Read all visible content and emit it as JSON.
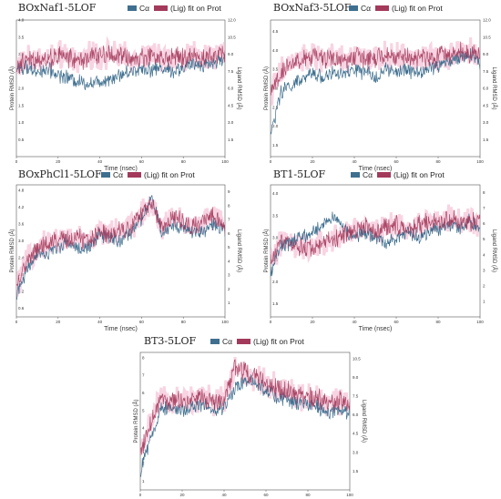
{
  "legend": {
    "ca_label": "Cα",
    "lig_label": "(Lig) fit on Prot",
    "ca_color": "#3f6f8f",
    "lig_color": "#a33a5b"
  },
  "x_axis_label": "Time (nsec)",
  "y_axis_left_label": "Protein RMSD (Å)",
  "y_axis_right_label": "Ligand RMSD (Å)",
  "chart_data": [
    {
      "type": "line",
      "title": "BOxNaf1-5LOF",
      "x_range": [
        0,
        100
      ],
      "x_ticks": [
        "0",
        "20",
        "40",
        "60",
        "80",
        "100"
      ],
      "y_left_ticks": [
        "0.5",
        "1.0",
        "1.5",
        "2.0",
        "2.5",
        "3.0",
        "3.5",
        "4.0"
      ],
      "y_right_ticks": [
        "1.5",
        "3.0",
        "4.5",
        "6.0",
        "7.5",
        "9.0",
        "10.5",
        "12.0"
      ],
      "y_left_range": [
        0,
        4.0
      ],
      "y_right_range": [
        0,
        12.0
      ],
      "series": [
        {
          "name": "Cα",
          "x": [
            0,
            5,
            10,
            15,
            20,
            25,
            30,
            35,
            40,
            45,
            50,
            55,
            60,
            65,
            70,
            75,
            80,
            85,
            90,
            95,
            100
          ],
          "y": [
            2.6,
            2.6,
            2.5,
            2.55,
            2.4,
            2.3,
            2.2,
            2.15,
            2.2,
            2.3,
            2.4,
            2.5,
            2.6,
            2.55,
            2.6,
            2.5,
            2.6,
            2.7,
            2.7,
            2.75,
            2.9
          ]
        },
        {
          "name": "(Lig) fit on Prot",
          "x": [
            0,
            5,
            10,
            15,
            20,
            25,
            30,
            35,
            40,
            45,
            50,
            55,
            60,
            65,
            70,
            75,
            80,
            85,
            90,
            95,
            100
          ],
          "y": [
            8.0,
            8.4,
            8.7,
            8.5,
            8.9,
            8.7,
            8.4,
            8.8,
            8.9,
            9.0,
            8.8,
            8.6,
            8.7,
            9.0,
            8.5,
            8.8,
            8.6,
            8.9,
            8.7,
            8.8,
            9.3
          ]
        }
      ]
    },
    {
      "type": "line",
      "title": "BOxNaf3-5LOF",
      "x_range": [
        0,
        100
      ],
      "x_ticks": [
        "0",
        "20",
        "40",
        "60",
        "80",
        "100"
      ],
      "y_left_ticks": [
        "1.5",
        "2.0",
        "2.5",
        "3.0",
        "3.5",
        "4.0",
        "4.5"
      ],
      "y_right_ticks": [
        "1.5",
        "3.0",
        "4.5",
        "6.0",
        "7.5",
        "9.0",
        "10.5",
        "12.0"
      ],
      "y_left_range": [
        1.2,
        4.8
      ],
      "y_right_range": [
        0,
        12.0
      ],
      "series": [
        {
          "name": "Cα",
          "x": [
            0,
            5,
            10,
            15,
            20,
            25,
            30,
            35,
            40,
            45,
            50,
            55,
            60,
            65,
            70,
            75,
            80,
            85,
            90,
            95,
            100
          ],
          "y": [
            1.8,
            2.9,
            3.1,
            3.2,
            3.4,
            3.3,
            3.4,
            3.35,
            3.5,
            3.4,
            3.3,
            3.5,
            3.4,
            3.5,
            3.4,
            3.5,
            3.6,
            3.7,
            3.8,
            3.9,
            3.7
          ]
        },
        {
          "name": "(Lig) fit on Prot",
          "x": [
            0,
            5,
            10,
            15,
            20,
            25,
            30,
            35,
            40,
            45,
            50,
            55,
            60,
            65,
            70,
            75,
            80,
            85,
            90,
            95,
            100
          ],
          "y": [
            5.5,
            7.5,
            8.2,
            8.5,
            8.8,
            8.6,
            8.7,
            8.4,
            8.8,
            8.6,
            8.5,
            8.9,
            8.7,
            8.8,
            8.6,
            8.7,
            8.8,
            9.0,
            9.3,
            9.2,
            8.8
          ]
        }
      ]
    },
    {
      "type": "line",
      "title": "BOxPhCl1-5LOF",
      "x_range": [
        0,
        100
      ],
      "x_ticks": [
        "0",
        "20",
        "40",
        "60",
        "80",
        "100"
      ],
      "y_left_ticks": [
        "0.6",
        "1.2",
        "1.8",
        "2.4",
        "3.0",
        "3.6",
        "4.2",
        "4.8"
      ],
      "y_right_ticks": [
        "1",
        "2",
        "3",
        "4",
        "5",
        "6",
        "7",
        "8",
        "9"
      ],
      "y_left_range": [
        0.3,
        5.0
      ],
      "y_right_range": [
        0,
        9.5
      ],
      "series": [
        {
          "name": "Cα",
          "x": [
            0,
            5,
            10,
            15,
            20,
            25,
            30,
            35,
            40,
            45,
            50,
            55,
            60,
            65,
            70,
            75,
            80,
            85,
            90,
            95,
            100
          ],
          "y": [
            1.0,
            2.0,
            2.6,
            2.5,
            2.8,
            3.0,
            2.7,
            2.8,
            3.2,
            3.1,
            3.0,
            3.3,
            3.8,
            4.5,
            3.2,
            3.6,
            3.5,
            3.3,
            3.4,
            3.6,
            3.3
          ]
        },
        {
          "name": "(Lig) fit on Prot",
          "x": [
            0,
            5,
            10,
            15,
            20,
            25,
            30,
            35,
            40,
            45,
            50,
            55,
            60,
            65,
            70,
            75,
            80,
            85,
            90,
            95,
            100
          ],
          "y": [
            2.0,
            4.0,
            5.0,
            5.3,
            5.6,
            5.5,
            5.7,
            5.4,
            6.2,
            6.0,
            6.3,
            6.5,
            7.4,
            8.2,
            6.4,
            7.2,
            6.8,
            6.5,
            6.8,
            7.2,
            6.6
          ]
        }
      ]
    },
    {
      "type": "line",
      "title": "BT1-5LOF",
      "x_range": [
        0,
        100
      ],
      "x_ticks": [
        "0",
        "20",
        "40",
        "60",
        "80",
        "100"
      ],
      "y_left_ticks": [
        "1.5",
        "2.0",
        "2.5",
        "3.0",
        "3.5",
        "4.0"
      ],
      "y_right_ticks": [
        "1",
        "2",
        "3",
        "4",
        "5",
        "6",
        "7",
        "8"
      ],
      "y_left_range": [
        1.2,
        4.2
      ],
      "y_right_range": [
        0,
        8.5
      ],
      "series": [
        {
          "name": "Cα",
          "x": [
            0,
            5,
            10,
            15,
            20,
            25,
            30,
            35,
            40,
            45,
            50,
            55,
            60,
            65,
            70,
            75,
            80,
            85,
            90,
            95,
            100
          ],
          "y": [
            2.2,
            2.8,
            2.9,
            3.0,
            3.1,
            3.3,
            3.5,
            3.2,
            3.0,
            3.1,
            3.0,
            2.9,
            3.0,
            3.1,
            3.0,
            3.1,
            3.2,
            3.3,
            3.2,
            3.4,
            3.2
          ]
        },
        {
          "name": "(Lig) fit on Prot",
          "x": [
            0,
            5,
            10,
            15,
            20,
            25,
            30,
            35,
            40,
            45,
            50,
            55,
            60,
            65,
            70,
            75,
            80,
            85,
            90,
            95,
            100
          ],
          "y": [
            3.5,
            4.8,
            4.6,
            4.4,
            4.5,
            4.7,
            5.0,
            5.3,
            5.6,
            5.8,
            5.5,
            5.7,
            6.0,
            5.6,
            5.8,
            6.2,
            6.0,
            6.3,
            6.1,
            6.2,
            6.0
          ]
        }
      ]
    },
    {
      "type": "line",
      "title": "BT3-5LOF",
      "x_range": [
        0,
        100
      ],
      "x_ticks": [
        "0",
        "20",
        "40",
        "60",
        "80",
        "100"
      ],
      "y_left_ticks": [
        "1",
        "2",
        "3",
        "4",
        "5",
        "6",
        "7",
        "8"
      ],
      "y_right_ticks": [
        "1.5",
        "3.0",
        "4.5",
        "6.0",
        "7.5",
        "9.0",
        "10.5"
      ],
      "y_left_range": [
        0.5,
        8.3
      ],
      "y_right_range": [
        0,
        11.0
      ],
      "series": [
        {
          "name": "Cα",
          "x": [
            0,
            5,
            10,
            15,
            20,
            25,
            30,
            35,
            40,
            45,
            50,
            55,
            60,
            65,
            70,
            75,
            80,
            85,
            90,
            95,
            100
          ],
          "y": [
            1.5,
            3.5,
            5.0,
            5.2,
            5.0,
            5.2,
            5.3,
            5.0,
            5.2,
            6.2,
            6.8,
            6.5,
            6.2,
            5.8,
            5.6,
            5.4,
            5.3,
            5.2,
            4.8,
            5.0,
            4.9
          ]
        },
        {
          "name": "(Lig) fit on Prot",
          "x": [
            0,
            5,
            10,
            15,
            20,
            25,
            30,
            35,
            40,
            45,
            50,
            55,
            60,
            65,
            70,
            75,
            80,
            85,
            90,
            95,
            100
          ],
          "y": [
            3.0,
            5.5,
            7.2,
            7.0,
            7.3,
            7.2,
            7.4,
            7.1,
            7.3,
            9.8,
            9.4,
            8.9,
            8.6,
            8.2,
            7.9,
            7.6,
            7.5,
            7.3,
            6.9,
            7.1,
            6.8
          ]
        }
      ]
    }
  ]
}
